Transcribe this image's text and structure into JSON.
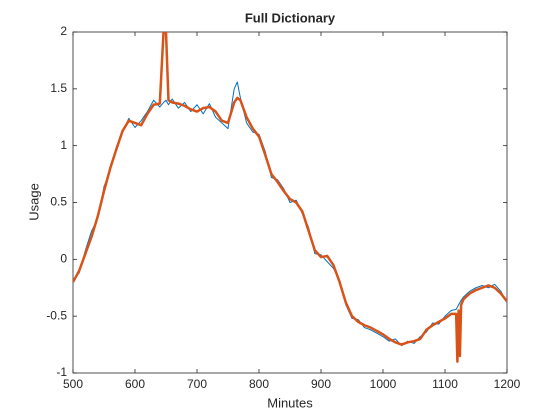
{
  "chart_data": {
    "type": "line",
    "title": "Full Dictionary",
    "xlabel": "Minutes",
    "ylabel": "Usage",
    "x": [
      500,
      510,
      520,
      530,
      540,
      550,
      560,
      570,
      580,
      590,
      600,
      610,
      620,
      630,
      640,
      646,
      650,
      654,
      660,
      670,
      680,
      690,
      700,
      710,
      720,
      730,
      740,
      750,
      760,
      765,
      770,
      780,
      790,
      800,
      810,
      820,
      830,
      840,
      850,
      860,
      870,
      880,
      890,
      900,
      910,
      920,
      930,
      940,
      950,
      960,
      970,
      980,
      990,
      1000,
      1010,
      1020,
      1030,
      1040,
      1050,
      1060,
      1070,
      1080,
      1090,
      1100,
      1110,
      1118,
      1120,
      1122,
      1124,
      1126,
      1130,
      1140,
      1150,
      1160,
      1170,
      1180,
      1190,
      1200
    ],
    "series": [
      {
        "color": "#0072bd",
        "width": 1,
        "values": [
          -0.18,
          -0.12,
          0.08,
          0.25,
          0.36,
          0.64,
          0.78,
          0.99,
          1.12,
          1.24,
          1.16,
          1.22,
          1.3,
          1.4,
          1.34,
          1.38,
          1.4,
          1.36,
          1.41,
          1.33,
          1.38,
          1.3,
          1.36,
          1.28,
          1.37,
          1.25,
          1.2,
          1.15,
          1.5,
          1.56,
          1.42,
          1.2,
          1.12,
          1.1,
          0.95,
          0.72,
          0.7,
          0.62,
          0.5,
          0.52,
          0.4,
          0.28,
          0.05,
          0.04,
          -0.02,
          -0.08,
          -0.18,
          -0.4,
          -0.52,
          -0.53,
          -0.6,
          -0.62,
          -0.65,
          -0.68,
          -0.72,
          -0.7,
          -0.76,
          -0.72,
          -0.74,
          -0.68,
          -0.64,
          -0.56,
          -0.57,
          -0.5,
          -0.45,
          -0.44,
          -0.42,
          -0.4,
          -0.38,
          -0.36,
          -0.33,
          -0.28,
          -0.25,
          -0.23,
          -0.25,
          -0.22,
          -0.28,
          -0.38
        ]
      },
      {
        "color": "#d95319",
        "width": 2.5,
        "values": [
          -0.2,
          -0.1,
          0.05,
          0.2,
          0.38,
          0.6,
          0.8,
          0.97,
          1.13,
          1.22,
          1.2,
          1.18,
          1.28,
          1.36,
          1.37,
          2,
          2,
          1.4,
          1.38,
          1.37,
          1.35,
          1.32,
          1.3,
          1.33,
          1.34,
          1.3,
          1.22,
          1.2,
          1.38,
          1.42,
          1.4,
          1.25,
          1.15,
          1.08,
          0.92,
          0.75,
          0.68,
          0.6,
          0.53,
          0.5,
          0.42,
          0.25,
          0.08,
          0.02,
          0.03,
          -0.05,
          -0.2,
          -0.38,
          -0.5,
          -0.55,
          -0.58,
          -0.6,
          -0.63,
          -0.66,
          -0.7,
          -0.73,
          -0.75,
          -0.73,
          -0.72,
          -0.7,
          -0.62,
          -0.58,
          -0.55,
          -0.52,
          -0.48,
          -0.48,
          -0.9,
          -0.45,
          -0.85,
          -0.4,
          -0.35,
          -0.3,
          -0.27,
          -0.25,
          -0.23,
          -0.25,
          -0.3,
          -0.37
        ]
      }
    ],
    "xlim": [
      500,
      1200
    ],
    "xticks": [
      500,
      600,
      700,
      800,
      900,
      1000,
      1100,
      1200
    ],
    "ylim": [
      -1,
      2
    ],
    "yticks": [
      -1,
      -0.5,
      0,
      0.5,
      1,
      1.5,
      2
    ]
  }
}
